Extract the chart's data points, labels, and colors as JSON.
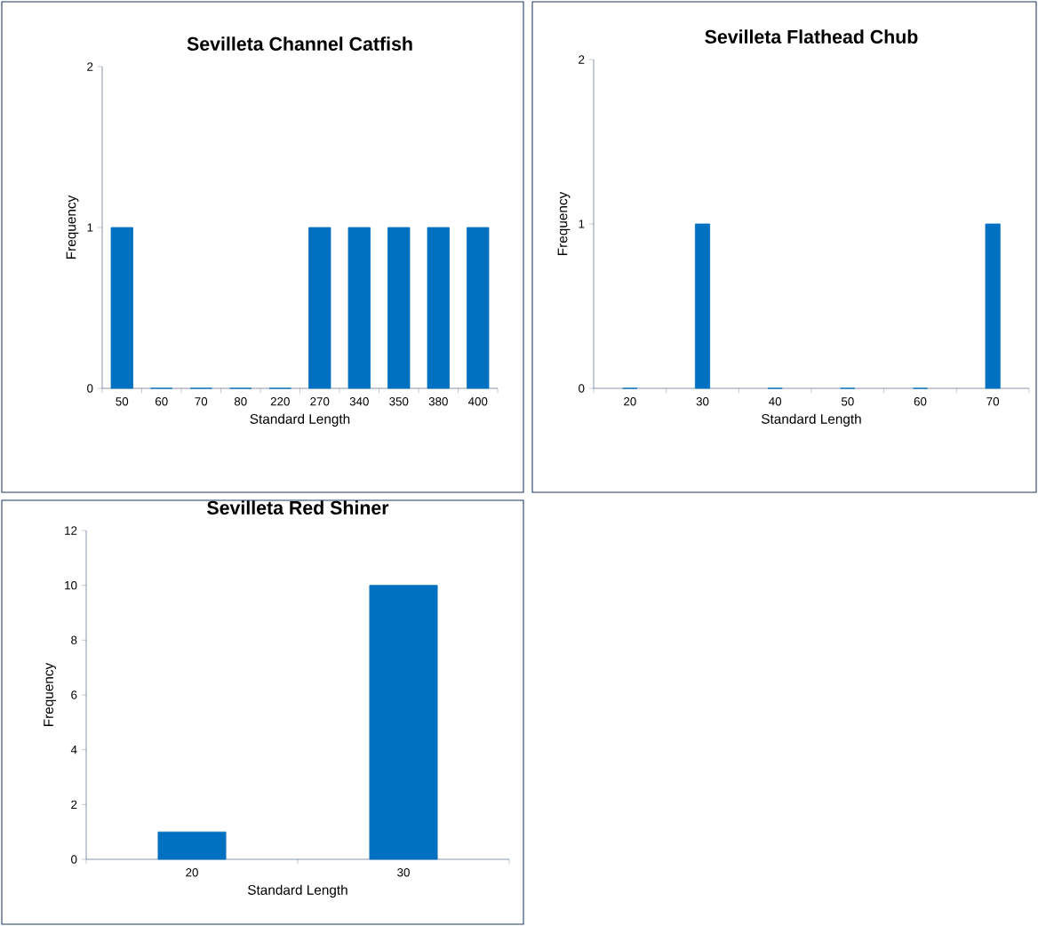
{
  "chart_data": [
    {
      "type": "bar",
      "title": "Sevilleta Channel Catfish",
      "xlabel": "Standard Length",
      "ylabel": "Frequency",
      "categories": [
        "50",
        "60",
        "70",
        "80",
        "220",
        "270",
        "340",
        "350",
        "380",
        "400"
      ],
      "values": [
        1,
        0,
        0,
        0,
        0,
        1,
        1,
        1,
        1,
        1
      ],
      "color": "#0070c0",
      "ylim": [
        0,
        2
      ],
      "yticks": [
        0,
        1,
        2
      ]
    },
    {
      "type": "bar",
      "title": "Sevilleta Flathead Chub",
      "xlabel": "Standard Length",
      "ylabel": "Frequency",
      "categories": [
        "20",
        "30",
        "40",
        "50",
        "60",
        "70"
      ],
      "values": [
        0,
        1,
        0,
        0,
        0,
        1
      ],
      "color": "#0070c0",
      "ylim": [
        0,
        2
      ],
      "yticks": [
        0,
        1,
        2
      ]
    },
    {
      "type": "bar",
      "title": "Sevilleta Red Shiner",
      "xlabel": "Standard Length",
      "ylabel": "Frequency",
      "categories": [
        "20",
        "30"
      ],
      "values": [
        1,
        10
      ],
      "color": "#0070c0",
      "ylim": [
        0,
        12
      ],
      "yticks": [
        0,
        2,
        4,
        6,
        8,
        10,
        12
      ]
    }
  ]
}
